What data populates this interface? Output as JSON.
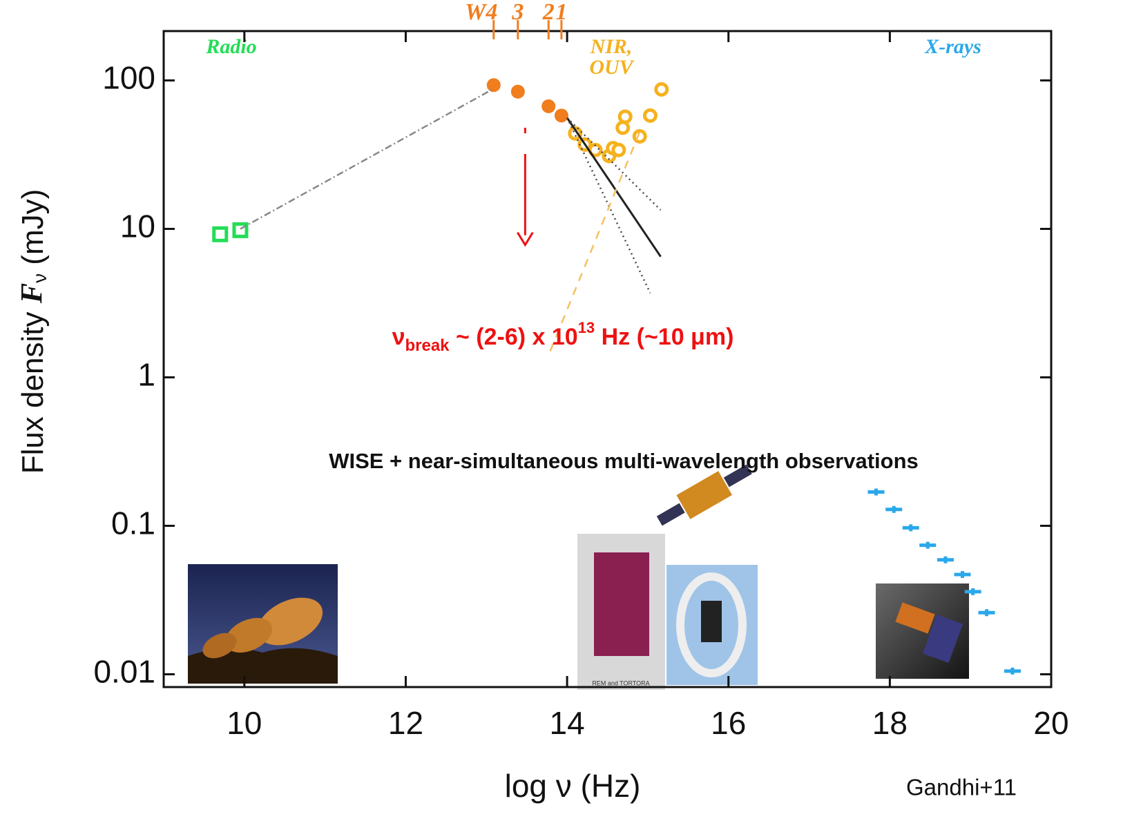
{
  "chart_data": {
    "type": "scatter",
    "x_label": "log ν (Hz)",
    "y_label_parts": [
      "Flux  density ",
      "F",
      "ν",
      " (mJy)"
    ],
    "xlim": [
      9,
      20
    ],
    "ylim": [
      0.0082,
      215
    ],
    "xticks": [
      10,
      12,
      14,
      16,
      18,
      20
    ],
    "yticks": [
      0.01,
      0.1,
      1,
      10,
      100
    ],
    "ylog": true,
    "series": [
      {
        "style": "square",
        "color": "#22dd55",
        "x": [
          9.7,
          9.95
        ],
        "values": [
          9.2,
          9.8
        ]
      },
      {
        "style": "circle",
        "color": "#f07d1e",
        "x": [
          13.09,
          13.39,
          13.77,
          13.93
        ],
        "values": [
          93,
          84,
          67,
          58
        ]
      },
      {
        "style": "ring",
        "color": "#f5b21e",
        "x": [
          14.1,
          14.22,
          14.35,
          14.52,
          14.57,
          14.64,
          14.69,
          14.72,
          14.9,
          15.03,
          15.17
        ],
        "values": [
          44,
          37,
          34,
          31,
          35,
          34,
          48,
          57,
          42,
          58,
          87
        ]
      },
      {
        "style": "plus",
        "color": "#2aa8ea",
        "x": [
          17.83,
          18.05,
          18.26,
          18.47,
          18.69,
          18.9,
          19.03,
          19.2,
          19.52
        ],
        "values": [
          0.169,
          0.129,
          0.097,
          0.074,
          0.059,
          0.047,
          0.036,
          0.026,
          0.0105
        ]
      },
      {
        "style": "dashdot",
        "color": "#888888",
        "x": [
          9.95,
          13.09
        ],
        "values": [
          10,
          88
        ]
      },
      {
        "style": "solid",
        "color": "#222222",
        "x": [
          14.0,
          15.16
        ],
        "values": [
          56,
          6.5
        ]
      },
      {
        "style": "dotted",
        "color": "#444444",
        "x": [
          14.0,
          15.16
        ],
        "values": [
          56,
          13.4
        ]
      },
      {
        "style": "dotted",
        "color": "#444444",
        "x": [
          14.0,
          15.03
        ],
        "values": [
          56,
          3.7
        ]
      },
      {
        "style": "dashed",
        "color": "#f5c060",
        "x": [
          13.79,
          14.9
        ],
        "values": [
          1.5,
          45
        ]
      }
    ],
    "wise_bands": [
      {
        "label": "W4",
        "x": 13.09
      },
      {
        "label": "3",
        "x": 13.39
      },
      {
        "label": "2",
        "x": 13.77
      },
      {
        "label": "1",
        "x": 13.93
      }
    ],
    "regions": {
      "radio": "Radio",
      "nir": [
        "NIR,",
        "OUV"
      ],
      "xrays": "X-rays"
    },
    "break_arrow": {
      "x": 13.48,
      "from": 48,
      "to": 7.8
    },
    "break_label_parts": [
      "ν",
      "break",
      " ~ (2-6) x 10",
      "13",
      " Hz (~10 μm)"
    ],
    "note": "WISE + near-simultaneous multi-wavelength observations",
    "image_caption": "REM and TORTORA",
    "credit": "Gandhi+11"
  }
}
